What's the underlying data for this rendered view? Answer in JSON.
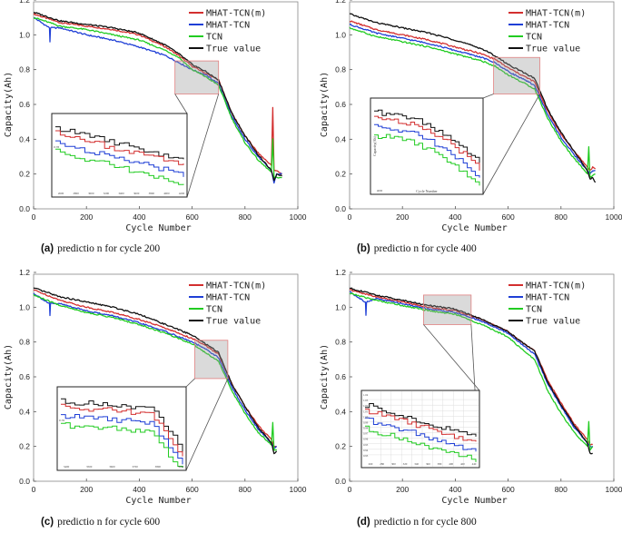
{
  "chart_data": [
    {
      "type": "line",
      "caption_letter": "(a)",
      "caption_text": "predictio n for cycle 200",
      "xlabel": "Cycle Number",
      "ylabel": "Capacity(Ah)",
      "xlim": [
        0,
        1000
      ],
      "ylim": [
        0.0,
        1.2
      ],
      "xticks": [
        "0",
        "200",
        "400",
        "600",
        "800",
        "1000"
      ],
      "yticks": [
        "0.0",
        "0.2",
        "0.4",
        "0.6",
        "0.8",
        "1.0",
        "1.2"
      ],
      "zoom_box": {
        "x": [
          535,
          700
        ],
        "y": [
          0.66,
          0.85
        ]
      },
      "series": [
        {
          "name": "MHAT-TCN(m)",
          "color": "#d32f2f",
          "x": [
            0,
            100,
            200,
            300,
            400,
            500,
            550,
            600,
            650,
            700,
            750,
            800,
            850,
            900,
            905,
            910,
            920,
            940
          ],
          "y": [
            1.12,
            1.07,
            1.05,
            1.03,
            1.0,
            0.93,
            0.88,
            0.82,
            0.78,
            0.74,
            0.55,
            0.42,
            0.32,
            0.25,
            0.58,
            0.22,
            0.22,
            0.2
          ]
        },
        {
          "name": "MHAT-TCN",
          "color": "#1f3fd6",
          "x": [
            0,
            60,
            62,
            64,
            100,
            200,
            300,
            400,
            500,
            550,
            600,
            650,
            700,
            750,
            800,
            850,
            900,
            910,
            920,
            940
          ],
          "y": [
            1.1,
            1.04,
            0.96,
            1.04,
            1.04,
            1.0,
            0.97,
            0.93,
            0.88,
            0.84,
            0.8,
            0.77,
            0.72,
            0.53,
            0.4,
            0.3,
            0.22,
            0.15,
            0.2,
            0.2
          ]
        },
        {
          "name": "TCN",
          "color": "#22cc22",
          "x": [
            0,
            100,
            200,
            300,
            400,
            500,
            550,
            600,
            650,
            700,
            750,
            800,
            850,
            900,
            905,
            910,
            920,
            940
          ],
          "y": [
            1.1,
            1.05,
            1.03,
            1.0,
            0.97,
            0.91,
            0.87,
            0.8,
            0.76,
            0.71,
            0.52,
            0.38,
            0.28,
            0.21,
            0.4,
            0.18,
            0.18,
            0.18
          ]
        },
        {
          "name": "True value",
          "color": "#111111",
          "x": [
            0,
            100,
            200,
            300,
            400,
            500,
            550,
            600,
            650,
            700,
            750,
            800,
            850,
            900,
            910,
            920,
            940
          ],
          "y": [
            1.13,
            1.08,
            1.06,
            1.04,
            1.01,
            0.94,
            0.89,
            0.83,
            0.79,
            0.74,
            0.55,
            0.42,
            0.31,
            0.22,
            0.16,
            0.2,
            0.19
          ]
        }
      ],
      "inset_xticks": [
        "2600",
        "2800",
        "3000",
        "3200",
        "3400",
        "3600",
        "3800",
        "4000",
        "4200"
      ],
      "inset_ytick": "0.78"
    },
    {
      "type": "line",
      "caption_letter": "(b)",
      "caption_text": "predictio n for cycle 400",
      "xlabel": "Cycle Number",
      "ylabel": "Capacity(Ah)",
      "xlim": [
        0,
        1000
      ],
      "ylim": [
        0.0,
        1.2
      ],
      "xticks": [
        "0",
        "200",
        "400",
        "600",
        "800",
        "1000"
      ],
      "yticks": [
        "0.0",
        "0.2",
        "0.4",
        "0.6",
        "0.8",
        "1.0",
        "1.2"
      ],
      "zoom_box": {
        "x": [
          545,
          720
        ],
        "y": [
          0.66,
          0.87
        ]
      },
      "series": [
        {
          "name": "MHAT-TCN(m)",
          "color": "#d32f2f",
          "x": [
            0,
            100,
            200,
            300,
            400,
            500,
            550,
            600,
            650,
            700,
            750,
            800,
            850,
            900,
            910,
            920,
            930
          ],
          "y": [
            1.08,
            1.03,
            1.0,
            0.97,
            0.93,
            0.89,
            0.86,
            0.81,
            0.77,
            0.73,
            0.56,
            0.43,
            0.33,
            0.24,
            0.22,
            0.24,
            0.23
          ]
        },
        {
          "name": "MHAT-TCN",
          "color": "#1f3fd6",
          "x": [
            0,
            100,
            200,
            300,
            400,
            500,
            550,
            600,
            650,
            700,
            750,
            800,
            850,
            900,
            910,
            920,
            930
          ],
          "y": [
            1.06,
            1.01,
            0.98,
            0.95,
            0.91,
            0.87,
            0.84,
            0.79,
            0.75,
            0.71,
            0.54,
            0.41,
            0.31,
            0.22,
            0.2,
            0.22,
            0.22
          ]
        },
        {
          "name": "TCN",
          "color": "#22cc22",
          "x": [
            0,
            100,
            200,
            300,
            400,
            500,
            550,
            600,
            650,
            700,
            750,
            800,
            850,
            900,
            905,
            910,
            930
          ],
          "y": [
            1.04,
            0.99,
            0.96,
            0.93,
            0.89,
            0.85,
            0.82,
            0.77,
            0.73,
            0.69,
            0.52,
            0.39,
            0.29,
            0.2,
            0.36,
            0.18,
            0.2
          ]
        },
        {
          "name": "True value",
          "color": "#111111",
          "x": [
            0,
            100,
            200,
            300,
            400,
            500,
            550,
            600,
            650,
            700,
            750,
            800,
            850,
            900,
            910,
            920,
            930
          ],
          "y": [
            1.12,
            1.07,
            1.04,
            1.01,
            0.97,
            0.92,
            0.88,
            0.83,
            0.79,
            0.75,
            0.57,
            0.44,
            0.33,
            0.22,
            0.17,
            0.18,
            0.15
          ]
        }
      ],
      "inset_xticks": [
        "4000"
      ],
      "inset_xlabel": "Cycle Number",
      "inset_ylabel": "Capacity(Ah)"
    },
    {
      "type": "line",
      "caption_letter": "(c)",
      "caption_text": "predictio n for cycle 600",
      "xlabel": "Cycle Number",
      "ylabel": "Capacity(Ah)",
      "xlim": [
        0,
        1000
      ],
      "ylim": [
        0.0,
        1.2
      ],
      "xticks": [
        "0",
        "200",
        "400",
        "600",
        "800",
        "1000"
      ],
      "yticks": [
        "0.0",
        "0.2",
        "0.4",
        "0.6",
        "0.8",
        "1.0",
        "1.2"
      ],
      "zoom_box": {
        "x": [
          610,
          735
        ],
        "y": [
          0.59,
          0.81
        ]
      },
      "series": [
        {
          "name": "MHAT-TCN(m)",
          "color": "#d32f2f",
          "x": [
            0,
            100,
            200,
            300,
            400,
            500,
            600,
            650,
            700,
            750,
            800,
            850,
            900,
            910,
            920
          ],
          "y": [
            1.1,
            1.04,
            1.0,
            0.97,
            0.93,
            0.88,
            0.82,
            0.78,
            0.73,
            0.56,
            0.43,
            0.32,
            0.24,
            0.2,
            0.2
          ]
        },
        {
          "name": "MHAT-TCN",
          "color": "#1f3fd6",
          "x": [
            0,
            60,
            62,
            64,
            100,
            200,
            300,
            400,
            500,
            600,
            650,
            700,
            750,
            800,
            850,
            900,
            910,
            920
          ],
          "y": [
            1.08,
            1.02,
            0.95,
            1.02,
            1.02,
            0.98,
            0.95,
            0.91,
            0.86,
            0.8,
            0.76,
            0.71,
            0.54,
            0.41,
            0.3,
            0.22,
            0.19,
            0.2
          ]
        },
        {
          "name": "TCN",
          "color": "#22cc22",
          "x": [
            0,
            100,
            200,
            300,
            400,
            500,
            600,
            650,
            700,
            750,
            800,
            850,
            900,
            905,
            910,
            920
          ],
          "y": [
            1.07,
            1.01,
            0.97,
            0.94,
            0.9,
            0.85,
            0.79,
            0.74,
            0.69,
            0.52,
            0.39,
            0.28,
            0.21,
            0.34,
            0.18,
            0.18
          ]
        },
        {
          "name": "True value",
          "color": "#111111",
          "x": [
            0,
            100,
            200,
            300,
            400,
            500,
            600,
            650,
            700,
            750,
            800,
            850,
            900,
            910,
            920
          ],
          "y": [
            1.11,
            1.06,
            1.03,
            1.0,
            0.96,
            0.9,
            0.84,
            0.79,
            0.74,
            0.56,
            0.43,
            0.31,
            0.22,
            0.16,
            0.17
          ]
        }
      ],
      "inset_xticks": [
        "3400",
        "3500",
        "3600",
        "3700",
        "3800",
        "3900"
      ],
      "inset_ytick": "0.76"
    },
    {
      "type": "line",
      "caption_letter": "(d)",
      "caption_text": "predictio n for cycle 800",
      "xlabel": "Cycle Number",
      "ylabel": "Capacity(Ah)",
      "xlim": [
        0,
        1000
      ],
      "ylim": [
        0.0,
        1.2
      ],
      "xticks": [
        "0",
        "200",
        "400",
        "600",
        "800",
        "1000"
      ],
      "yticks": [
        "0.0",
        "0.2",
        "0.4",
        "0.6",
        "0.8",
        "1.0",
        "1.2"
      ],
      "zoom_box": {
        "x": [
          280,
          460
        ],
        "y": [
          0.9,
          1.07
        ]
      },
      "series": [
        {
          "name": "MHAT-TCN(m)",
          "color": "#d32f2f",
          "x": [
            0,
            100,
            200,
            300,
            400,
            500,
            600,
            650,
            700,
            750,
            800,
            850,
            900,
            910,
            920
          ],
          "y": [
            1.1,
            1.06,
            1.03,
            1.0,
            0.98,
            0.93,
            0.86,
            0.8,
            0.75,
            0.58,
            0.45,
            0.33,
            0.24,
            0.21,
            0.21
          ]
        },
        {
          "name": "MHAT-TCN",
          "color": "#1f3fd6",
          "x": [
            0,
            60,
            62,
            64,
            100,
            200,
            300,
            400,
            500,
            600,
            650,
            700,
            750,
            800,
            850,
            900,
            910,
            920
          ],
          "y": [
            1.09,
            1.03,
            0.95,
            1.03,
            1.05,
            1.02,
            0.99,
            0.97,
            0.92,
            0.85,
            0.79,
            0.73,
            0.56,
            0.43,
            0.31,
            0.22,
            0.2,
            0.2
          ]
        },
        {
          "name": "TCN",
          "color": "#22cc22",
          "x": [
            0,
            100,
            200,
            300,
            400,
            500,
            600,
            650,
            700,
            750,
            800,
            850,
            900,
            905,
            910,
            920
          ],
          "y": [
            1.08,
            1.04,
            1.01,
            0.98,
            0.96,
            0.9,
            0.83,
            0.76,
            0.7,
            0.52,
            0.39,
            0.28,
            0.2,
            0.34,
            0.18,
            0.2
          ]
        },
        {
          "name": "True value",
          "color": "#111111",
          "x": [
            0,
            100,
            200,
            300,
            400,
            500,
            600,
            650,
            700,
            750,
            800,
            850,
            900,
            910,
            920
          ],
          "y": [
            1.11,
            1.07,
            1.04,
            1.01,
            0.99,
            0.93,
            0.86,
            0.8,
            0.75,
            0.57,
            0.44,
            0.32,
            0.22,
            0.16,
            0.16
          ]
        }
      ],
      "inset_xticks": [
        "260",
        "280",
        "300",
        "320",
        "340",
        "360",
        "380",
        "400",
        "420",
        "440"
      ],
      "inset_yticks": [
        "1.04",
        "1.03",
        "1.02",
        "1.01",
        "1.00",
        "0.99",
        "0.98",
        "0.97",
        "0.96",
        "0.95",
        "0.94",
        "0.93"
      ]
    }
  ]
}
